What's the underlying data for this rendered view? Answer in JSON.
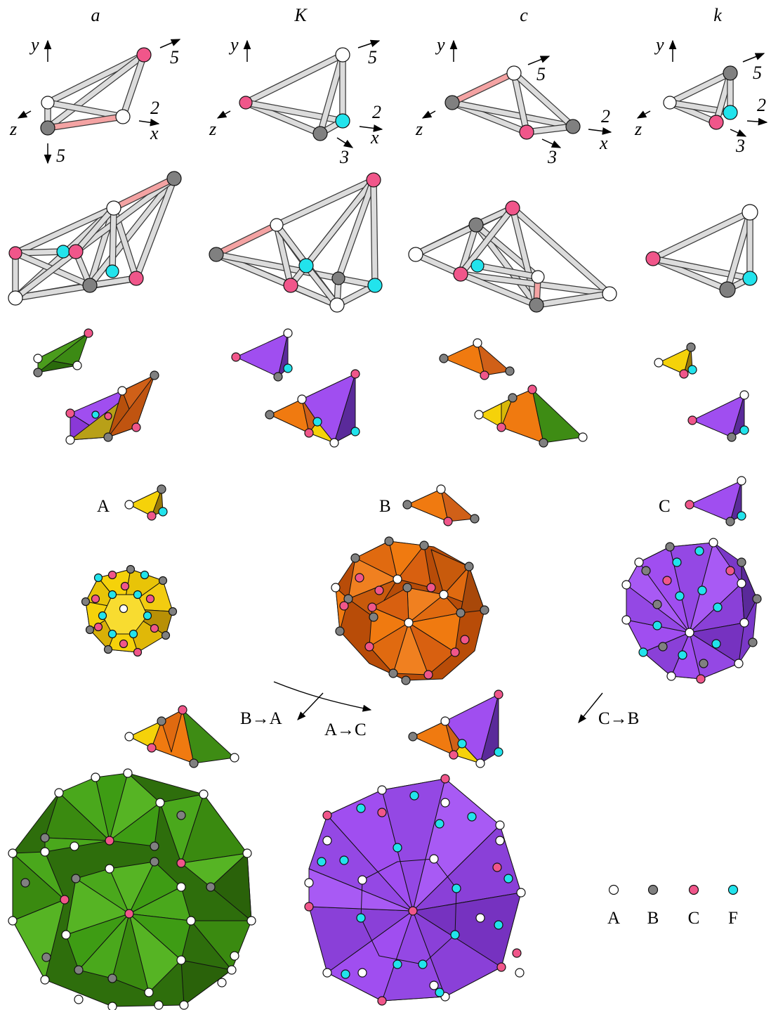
{
  "columns": [
    {
      "header": "a"
    },
    {
      "header": "K"
    },
    {
      "header": "c"
    },
    {
      "header": "k"
    }
  ],
  "axis_labels": {
    "x": "x",
    "y": "y",
    "z": "z"
  },
  "axis_values": {
    "a": {
      "five_right": "5",
      "two": "2",
      "five_down": "5"
    },
    "K": {
      "five": "5",
      "two": "2",
      "three": "3"
    },
    "c": {
      "five": "5",
      "two": "2",
      "three": "3"
    },
    "k": {
      "five": "5",
      "two": "2",
      "three": "3"
    }
  },
  "tiles": [
    {
      "label": "A"
    },
    {
      "label": "B"
    },
    {
      "label": "C"
    }
  ],
  "transitions": [
    {
      "label": "B→A"
    },
    {
      "label": "A→C"
    },
    {
      "label": "C→B"
    }
  ],
  "legend": [
    {
      "label": "A",
      "color": "#ffffff"
    },
    {
      "label": "B",
      "color": "#808080"
    },
    {
      "label": "C",
      "color": "#f0568a"
    },
    {
      "label": "F",
      "color": "#22e3ec"
    }
  ],
  "colors": {
    "white_node": "#ffffff",
    "gray_node": "#808080",
    "pink_node": "#f0568a",
    "cyan_node": "#22e3ec",
    "yellow": "#f5d20a",
    "orange": "#f07a10",
    "purple": "#a04ef0",
    "green": "#3e9c14"
  }
}
